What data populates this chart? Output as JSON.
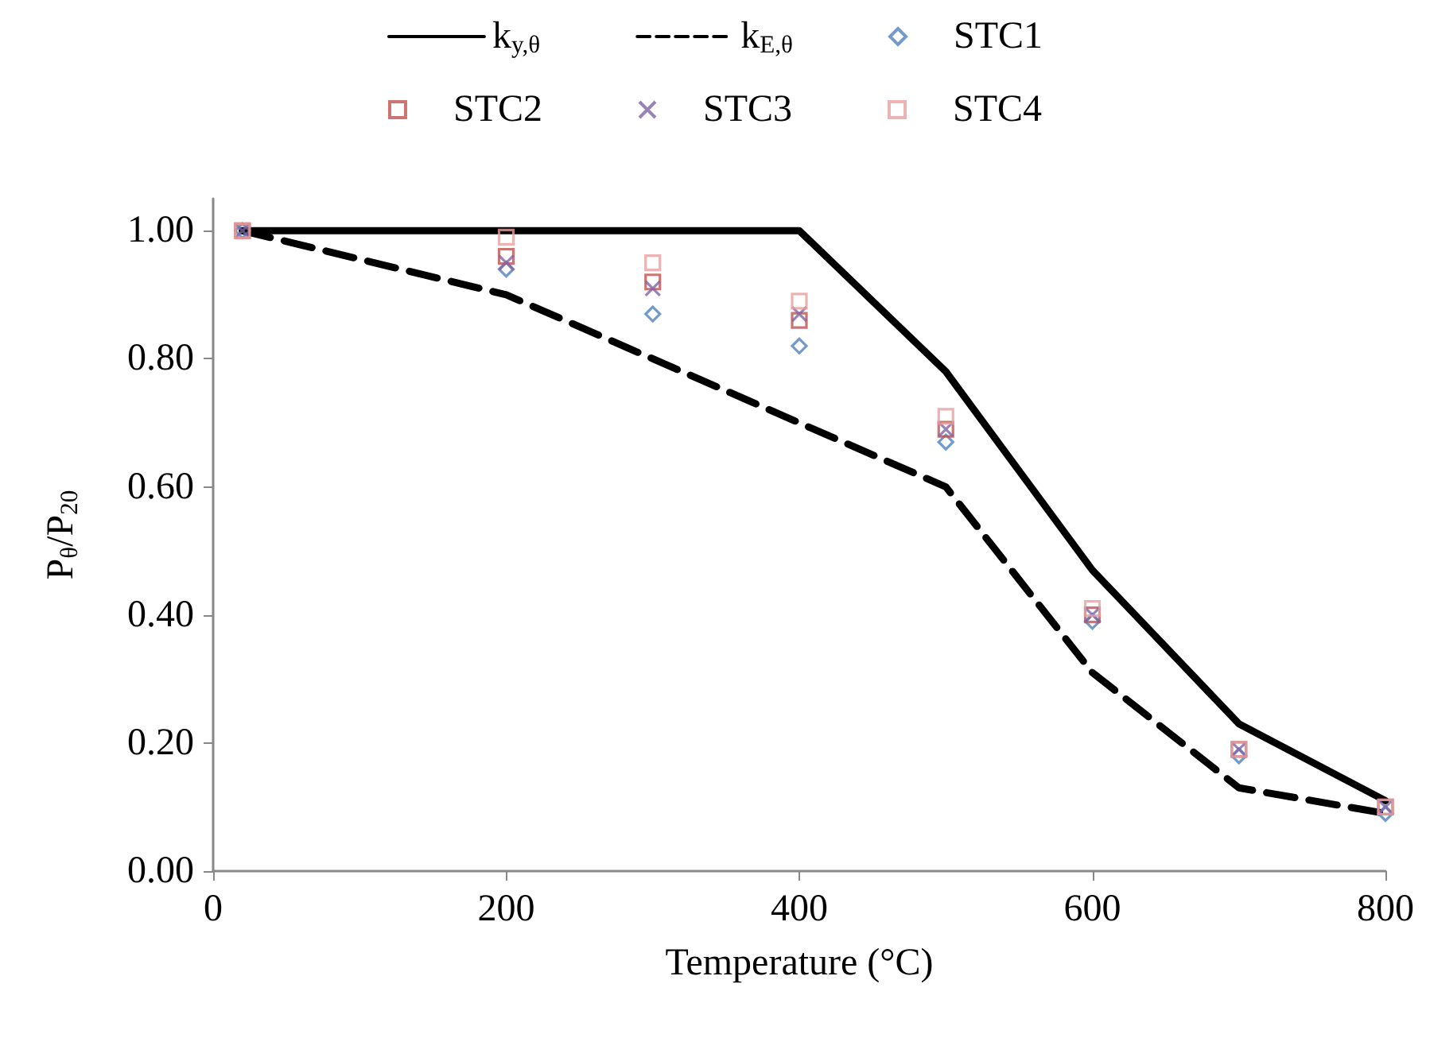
{
  "chart_data": {
    "type": "line",
    "xlabel": "Temperature (°C)",
    "ylabel": "P$_{θ}$/P$_{20}$",
    "x": [
      20,
      200,
      300,
      400,
      500,
      600,
      700,
      800
    ],
    "series": [
      {
        "name": "k$_{y,θ}$",
        "color": "#000000",
        "line_style": "solid",
        "marker": "none",
        "x": [
          20,
          400,
          500,
          600,
          700,
          800
        ],
        "values": [
          1.0,
          1.0,
          0.78,
          0.47,
          0.23,
          0.11
        ]
      },
      {
        "name": "k$_{E,θ}$",
        "color": "#000000",
        "line_style": "dashed",
        "marker": "none",
        "values": [
          1.0,
          0.9,
          0.8,
          0.7,
          0.6,
          0.31,
          0.13,
          0.09
        ]
      },
      {
        "name": "STC1",
        "type": "scatter",
        "color": "#4f81bd",
        "marker": "diamond",
        "values": [
          1.0,
          0.94,
          0.87,
          0.82,
          0.67,
          0.39,
          0.18,
          0.09
        ]
      },
      {
        "name": "STC2",
        "type": "scatter",
        "color": "#c0504d",
        "marker": "square",
        "values": [
          1.0,
          0.96,
          0.92,
          0.86,
          0.69,
          0.4,
          0.19,
          0.1
        ]
      },
      {
        "name": "STC3",
        "type": "scatter",
        "color": "#8064a2",
        "marker": "cross",
        "values": [
          1.0,
          0.95,
          0.91,
          0.87,
          0.69,
          0.4,
          0.19,
          0.1
        ]
      },
      {
        "name": "STC4",
        "type": "scatter",
        "color": "#e6a0a0",
        "marker": "square",
        "values": [
          1.0,
          0.99,
          0.95,
          0.89,
          0.71,
          0.41,
          0.19,
          0.1
        ]
      }
    ],
    "xlim": [
      0,
      800
    ],
    "xticks": [
      0,
      200,
      400,
      600,
      800
    ],
    "ylim": [
      0,
      1.05
    ],
    "yticks": [
      {
        "value": 0,
        "label": "0.00"
      },
      {
        "value": 0.2,
        "label": "0.20"
      },
      {
        "value": 0.4,
        "label": "0.40"
      },
      {
        "value": 0.6,
        "label": "0.60"
      },
      {
        "value": 0.8,
        "label": "0.80"
      },
      {
        "value": 1.0,
        "label": "1.00"
      }
    ],
    "grid": false,
    "legend": "top"
  }
}
